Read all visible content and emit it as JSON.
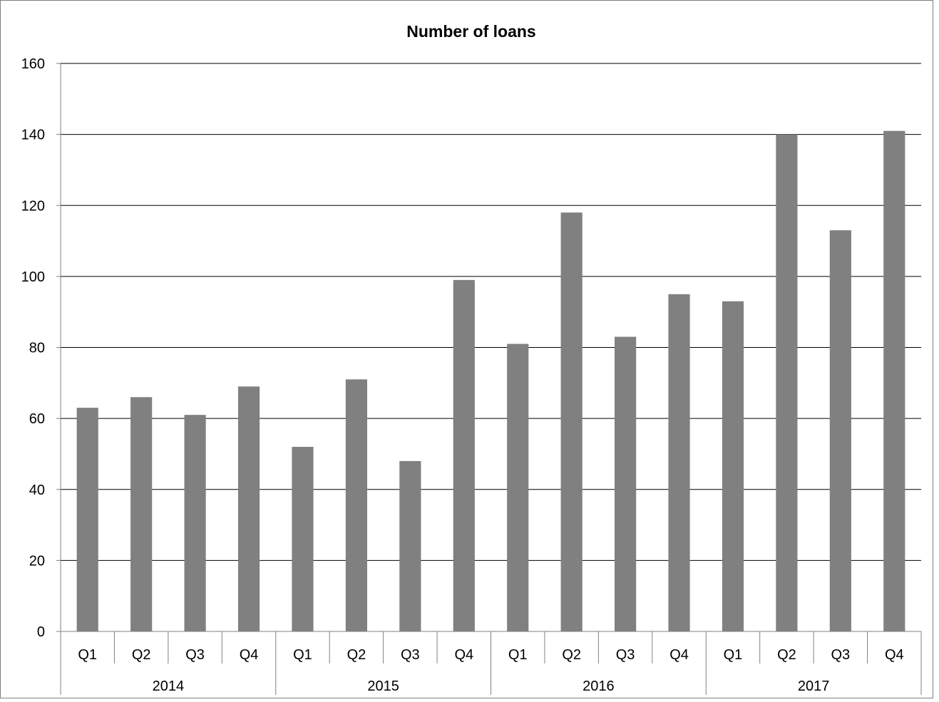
{
  "chart_data": {
    "type": "bar",
    "title": "Number of loans",
    "xlabel": "",
    "ylabel": "",
    "ylim": [
      0,
      160
    ],
    "yticks": [
      0,
      20,
      40,
      60,
      80,
      100,
      120,
      140,
      160
    ],
    "grid": true,
    "legend": "none",
    "groups": [
      {
        "label": "2014",
        "categories": [
          "Q1",
          "Q2",
          "Q3",
          "Q4"
        ]
      },
      {
        "label": "2015",
        "categories": [
          "Q1",
          "Q2",
          "Q3",
          "Q4"
        ]
      },
      {
        "label": "2016",
        "categories": [
          "Q1",
          "Q2",
          "Q3",
          "Q4"
        ]
      },
      {
        "label": "2017",
        "categories": [
          "Q1",
          "Q2",
          "Q3",
          "Q4"
        ]
      }
    ],
    "values": [
      63,
      66,
      61,
      69,
      52,
      71,
      48,
      99,
      81,
      118,
      83,
      95,
      93,
      140,
      113,
      141
    ],
    "colors": {
      "bar": "#808080",
      "grid": "#000000",
      "axis": "#808080",
      "frame": "#808080"
    }
  }
}
